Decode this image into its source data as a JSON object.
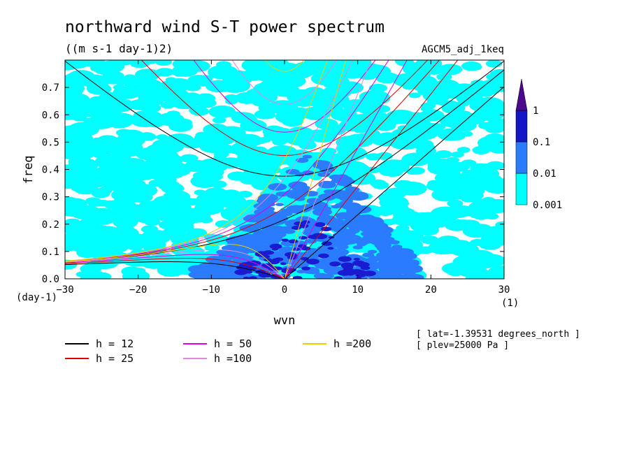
{
  "chart_data": {
    "type": "heatmap",
    "title": "northward wind S-T power spectrum",
    "units": "((m s-1 day-1)2)",
    "run_name": "AGCM5_adj_1keq",
    "xlabel": "wvn",
    "ylabel": "freq",
    "x_unit": "(1)",
    "y_unit": "(day-1)",
    "xlim": [
      -30,
      30
    ],
    "ylim": [
      0,
      0.8
    ],
    "x_ticks": [
      -30,
      -20,
      -10,
      0,
      10,
      20,
      30
    ],
    "y_ticks": [
      0.0,
      0.1,
      0.2,
      0.3,
      0.4,
      0.5,
      0.6,
      0.7
    ],
    "colorbar": {
      "levels": [
        "0.001",
        "0.01",
        "0.1",
        "1"
      ],
      "colors": [
        "#00ffff",
        "#2b7bff",
        "#1414c8",
        "#4b0a8c"
      ]
    },
    "contour_colors": {
      "low": "#00ffff",
      "mid": "#2b7bff",
      "high": "#1a1ad0"
    },
    "dispersion_curves": [
      {
        "name": "h = 12",
        "color": "#000000",
        "h": 12
      },
      {
        "name": "h = 25",
        "color": "#e00000",
        "h": 25
      },
      {
        "name": "h = 50",
        "color": "#e000e0",
        "h": 50
      },
      {
        "name": "h =100",
        "color": "#e088e0",
        "h": 100
      },
      {
        "name": "h =200",
        "color": "#e8d000",
        "h": 200
      }
    ],
    "annotations": [
      "[ lat=-1.39531 degrees_north ]",
      "[ plev=25000 Pa ]"
    ]
  }
}
